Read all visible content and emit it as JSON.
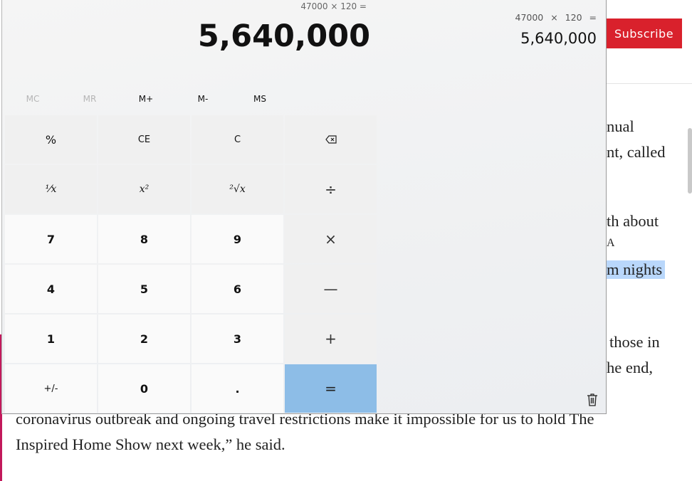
{
  "calculator": {
    "expression": "47000 × 120 =",
    "display": "5,640,000",
    "memory": [
      {
        "label": "MC",
        "enabled": false
      },
      {
        "label": "MR",
        "enabled": false
      },
      {
        "label": "M+",
        "enabled": true
      },
      {
        "label": "M-",
        "enabled": true
      },
      {
        "label": "MS",
        "enabled": true
      }
    ],
    "keys": {
      "percent": "%",
      "ce": "CE",
      "c": "C",
      "reciprocal": "⅟x",
      "square": "x²",
      "sqrt": "²√x",
      "divide": "÷",
      "seven": "7",
      "eight": "8",
      "nine": "9",
      "multiply": "×",
      "four": "4",
      "five": "5",
      "six": "6",
      "minus": "—",
      "one": "1",
      "two": "2",
      "three": "3",
      "plus": "+",
      "negate": "+/-",
      "zero": "0",
      "decimal": ".",
      "equals": "="
    },
    "history": {
      "expression": "47000 × 120 =",
      "result": "5,640,000"
    },
    "icons": {
      "backspace": "backspace-icon",
      "trash": "trash-icon"
    },
    "accent_color": "#8dbde7"
  },
  "webpage": {
    "subscribe_label": "Subscribe",
    "subscribe_color": "#d9212c",
    "article_fragments": [
      "nual",
      "nt, called",
      "th about",
      "A",
      "m nights",
      "those in",
      "he end,",
      "coronavirus outbreak and ongoing travel restrictions make it impossible for us to hold The",
      "Inspired Home Show next week,” he said."
    ]
  }
}
